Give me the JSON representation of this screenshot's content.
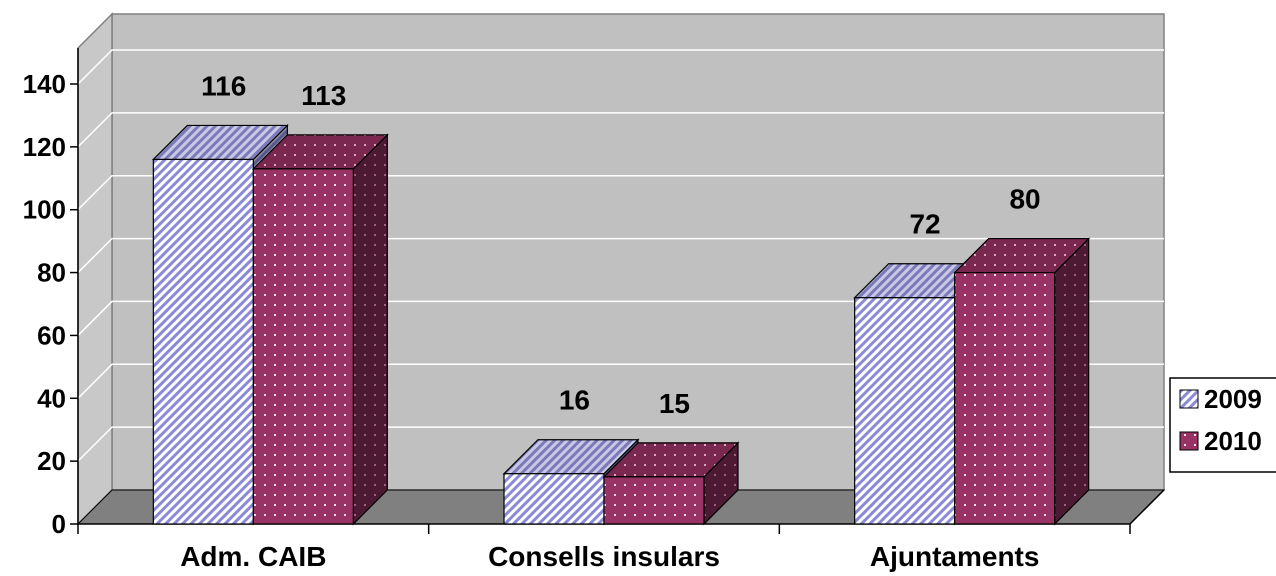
{
  "chart_data": {
    "type": "bar",
    "title": "",
    "xlabel": "",
    "ylabel": "",
    "categories": [
      "Adm. CAIB",
      "Consells insulars",
      "Ajuntaments"
    ],
    "series": [
      {
        "name": "2009",
        "values": [
          116,
          16,
          72
        ],
        "color": "#aaaadd",
        "pattern": "diagonal"
      },
      {
        "name": "2010",
        "values": [
          113,
          15,
          80
        ],
        "color": "#993366",
        "pattern": "dots"
      }
    ],
    "ylim": [
      0,
      140
    ],
    "yticks": [
      0,
      20,
      40,
      60,
      80,
      100,
      120,
      140
    ],
    "grid": true,
    "three_d": true,
    "legend_position": "right",
    "wall_color": "#c0c0c0",
    "floor_color": "#808080"
  }
}
